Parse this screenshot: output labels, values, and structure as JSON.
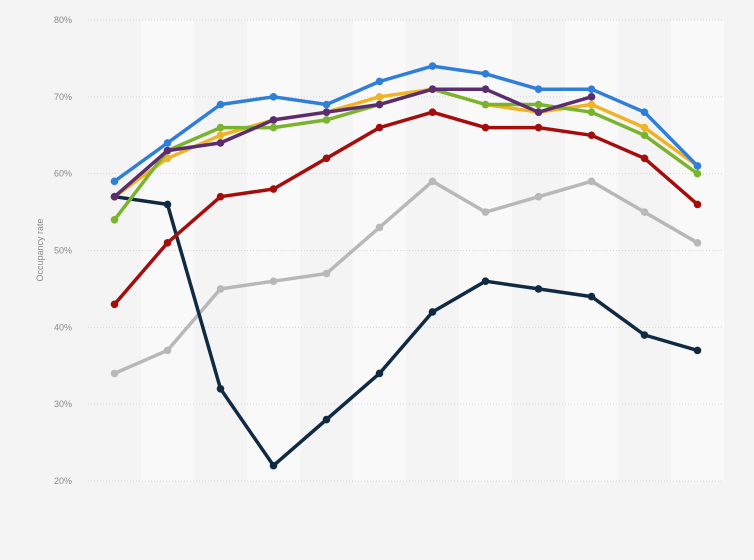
{
  "chart_data": {
    "type": "line",
    "xlabel": "",
    "ylabel": "Occupancy rate",
    "ylim": [
      20,
      80
    ],
    "y_ticks": [
      "20%",
      "30%",
      "40%",
      "50%",
      "60%",
      "70%",
      "80%"
    ],
    "y_tick_values": [
      20,
      30,
      40,
      50,
      60,
      70,
      80
    ],
    "categories": [
      "",
      "",
      "",
      "",
      "",
      "",
      "",
      "",
      "",
      "",
      "",
      ""
    ],
    "grid": true,
    "legend": "none",
    "series": [
      {
        "color": "#b8b8b8",
        "values": [
          34,
          37,
          45,
          46,
          47,
          53,
          59,
          55,
          57,
          59,
          55,
          51
        ]
      },
      {
        "color": "#102a43",
        "values": [
          57,
          56,
          32,
          22,
          28,
          34,
          42,
          46,
          45,
          44,
          39,
          37
        ]
      },
      {
        "color": "#a50d0d",
        "values": [
          43,
          51,
          57,
          58,
          62,
          66,
          68,
          66,
          66,
          65,
          62,
          56
        ]
      },
      {
        "color": "#f0b323",
        "values": [
          57,
          62,
          65,
          67,
          68,
          70,
          71,
          69,
          68,
          69,
          66,
          61
        ]
      },
      {
        "color": "#7ab32e",
        "values": [
          54,
          63,
          66,
          66,
          67,
          69,
          71,
          69,
          69,
          68,
          65,
          60
        ]
      },
      {
        "color": "#2f7ed8",
        "values": [
          59,
          64,
          69,
          70,
          69,
          72,
          74,
          73,
          71,
          71,
          68,
          61
        ]
      },
      {
        "color": "#5c2d6e",
        "values": [
          57,
          63,
          64,
          67,
          68,
          69,
          71,
          71,
          68,
          70,
          null,
          null
        ]
      }
    ]
  }
}
